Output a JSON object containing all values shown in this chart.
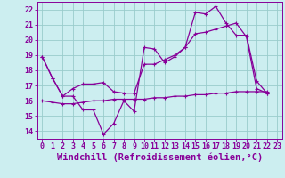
{
  "background_color": "#cceef0",
  "grid_color": "#99cccc",
  "line_color": "#880099",
  "xlabel": "Windchill (Refroidissement éolien,°C)",
  "xlim": [
    -0.5,
    23.5
  ],
  "ylim": [
    13.5,
    22.5
  ],
  "yticks": [
    14,
    15,
    16,
    17,
    18,
    19,
    20,
    21,
    22
  ],
  "xticks": [
    0,
    1,
    2,
    3,
    4,
    5,
    6,
    7,
    8,
    9,
    10,
    11,
    12,
    13,
    14,
    15,
    16,
    17,
    18,
    19,
    20,
    21,
    22,
    23
  ],
  "line1_x": [
    0,
    1,
    2,
    3,
    4,
    5,
    6,
    7,
    8,
    9,
    10,
    11,
    12,
    13,
    14,
    15,
    16,
    17,
    18,
    19,
    20,
    21,
    22
  ],
  "line1_y": [
    18.9,
    17.5,
    16.3,
    16.3,
    15.4,
    15.4,
    13.8,
    14.5,
    16.0,
    15.3,
    19.5,
    19.4,
    18.5,
    18.9,
    19.5,
    21.8,
    21.7,
    22.2,
    21.1,
    20.3,
    20.3,
    17.3,
    16.5
  ],
  "line2_x": [
    0,
    1,
    2,
    3,
    4,
    5,
    6,
    7,
    8,
    9,
    10,
    11,
    12,
    13,
    14,
    15,
    16,
    17,
    18,
    19,
    20,
    21,
    22
  ],
  "line2_y": [
    18.9,
    17.5,
    16.3,
    16.8,
    17.1,
    17.1,
    17.2,
    16.6,
    16.5,
    16.5,
    18.4,
    18.4,
    18.7,
    19.0,
    19.5,
    20.4,
    20.5,
    20.7,
    20.9,
    21.1,
    20.2,
    16.8,
    16.5
  ],
  "line3_x": [
    0,
    1,
    2,
    3,
    4,
    5,
    6,
    7,
    8,
    9,
    10,
    11,
    12,
    13,
    14,
    15,
    16,
    17,
    18,
    19,
    20,
    21,
    22
  ],
  "line3_y": [
    16.0,
    15.9,
    15.8,
    15.8,
    15.9,
    16.0,
    16.0,
    16.1,
    16.1,
    16.1,
    16.1,
    16.2,
    16.2,
    16.3,
    16.3,
    16.4,
    16.4,
    16.5,
    16.5,
    16.6,
    16.6,
    16.6,
    16.6
  ],
  "tick_fontsize": 6,
  "label_fontsize": 7.5
}
